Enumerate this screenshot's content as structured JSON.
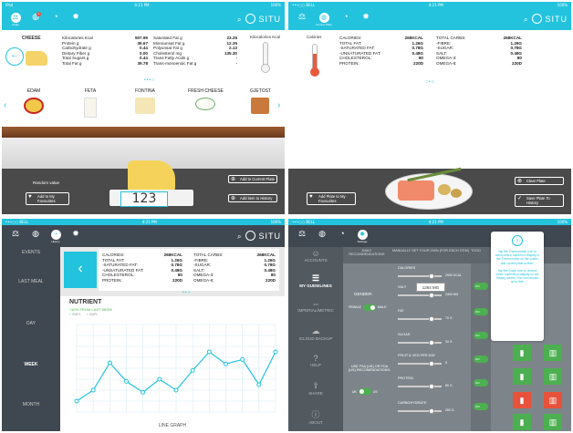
{
  "status": {
    "carrier": "iPad",
    "carrier2": "•••○○ BELL",
    "time": "4:21 PM",
    "battery": "100%"
  },
  "brand": {
    "name": "SITU",
    "accent": "#23c3de",
    "dark": "#3f4850"
  },
  "nav": {
    "scale_label": "Scale",
    "current_plate_label": "Current Plate",
    "history_label": "History",
    "settings_label": "Settings",
    "badge_count": "0"
  },
  "p1": {
    "category": "CHEESE",
    "nutrition_left": [
      {
        "name": "Kilocalories Kcal",
        "value": "507.99"
      },
      {
        "name": "Protein g",
        "value": "36.67"
      },
      {
        "name": "Carbohydrate g",
        "value": "0.44"
      },
      {
        "name": "Dietary Fiber g",
        "value": "0.00"
      },
      {
        "name": "Total Sugars g",
        "value": "0.44"
      },
      {
        "name": "Total Fat g",
        "value": "39.78"
      }
    ],
    "nutrition_right": [
      {
        "name": "Saturated Fat g",
        "value": "23.26"
      },
      {
        "name": "Monounsat Fat g",
        "value": "12.35"
      },
      {
        "name": "Polyunsat Fat g",
        "value": "2.13"
      },
      {
        "name": "Cholesterol mg",
        "value": "135.30"
      },
      {
        "name": "Trans Fatty Acids g",
        "value": "-"
      },
      {
        "name": "Trans-monoenoic Fat g",
        "value": "-"
      }
    ],
    "gauge_label": "Kilocalories Kcal",
    "cheeses": [
      "EDAM",
      "FETA",
      "FONTINA",
      "FRESH CHEESE",
      "GJETOST"
    ],
    "random_value_label": "Random value",
    "add_fav": "Add to My Favourites",
    "add_plate": "Add to Current Plate",
    "add_history": "Add item to History",
    "weight": "123"
  },
  "p2": {
    "calories_label": "Calories",
    "left": [
      {
        "name": "CALORIES:",
        "value": "268KCAL"
      },
      {
        "name": "TOTAL FAT:",
        "value": "1.26G"
      },
      {
        "name": "-SATURATED FAT:",
        "value": "0.78G"
      },
      {
        "name": "-UNSATURATED FAT:",
        "value": "0.48G"
      },
      {
        "name": "CHOLESTEROL:",
        "value": "80"
      },
      {
        "name": "PROTEIN:",
        "value": "220D"
      }
    ],
    "right": [
      {
        "name": "TOTAL CARBS:",
        "value": "268KCAL"
      },
      {
        "name": "-FIBRE:",
        "value": "1.26G"
      },
      {
        "name": "-SUGAR:",
        "value": "0.78G"
      },
      {
        "name": "SALT:",
        "value": "0.48G"
      },
      {
        "name": "OMEGA-3:",
        "value": "80"
      },
      {
        "name": "OMEGA-6:",
        "value": "220D"
      }
    ],
    "add_fav": "Add Plate to My Favourites",
    "clear": "Clear Plate",
    "save": "Save Plate To History"
  },
  "p3": {
    "side_items": [
      "EVENTS",
      "LAST MEAL",
      "DAY",
      "WEEK",
      "MONTH"
    ],
    "active": "WEEK",
    "chart_title": "NUTRIENT",
    "chart_sub": "+42% FROM LAST WEEK",
    "legend": [
      "SMPL",
      "SMPL"
    ],
    "x_label": "LINE GRAPH"
  },
  "p4": {
    "side_items": [
      "ACCOUNTS",
      "MY GUIDELINES",
      "IMPERIAL/METRIC",
      "ICLOUD BACKUP",
      "HELP",
      "SHARE",
      "ABOUT"
    ],
    "active": "MY GUIDELINES",
    "col_headers": [
      "DAILY RECOMMENDATIONS",
      "MANUALLY SET YOUR OWN (FOR EACH ITEM)",
      "TOGG"
    ],
    "gender_label": "GENDER:",
    "female": "FEMALE",
    "male": "MALE",
    "fsa_label": "USE FSA (UK) OR FDA (US) RECOMENDATIONS:",
    "uk": "UK",
    "us": "US",
    "sliders": [
      {
        "name": "CALORIES",
        "value": "2000 KCAL"
      },
      {
        "name": "SALT",
        "value": "2400 MG"
      },
      {
        "name": "FAT",
        "value": "70 G"
      },
      {
        "name": "SUGAR",
        "value": "30 G"
      },
      {
        "name": "FRUIT & VEG PER DAY",
        "value": "5"
      },
      {
        "name": "PROTEIN",
        "value": "50 G"
      },
      {
        "name": "CARBOHYDRATE",
        "value": "260 G"
      }
    ],
    "salt_popup": "1264 MG",
    "toggle_on": "ON",
    "help_text": "Tap the Thermometer icon to select which nutrient to display in the Thermometer on the scales and current plate screen.",
    "help_text2": "Tap the Graph icon to choose which nutrients to display on the History screen. You can choose up to five!"
  },
  "chart_data": {
    "type": "line",
    "title": "NUTRIENT",
    "subtitle": "+42% FROM LAST WEEK",
    "xlabel": "LINE GRAPH",
    "series": [
      {
        "values": [
          10,
          20,
          45,
          28,
          18,
          30,
          20,
          38,
          55,
          44,
          48,
          25,
          55
        ]
      }
    ],
    "ylim": [
      0,
      80
    ],
    "grid": true
  }
}
